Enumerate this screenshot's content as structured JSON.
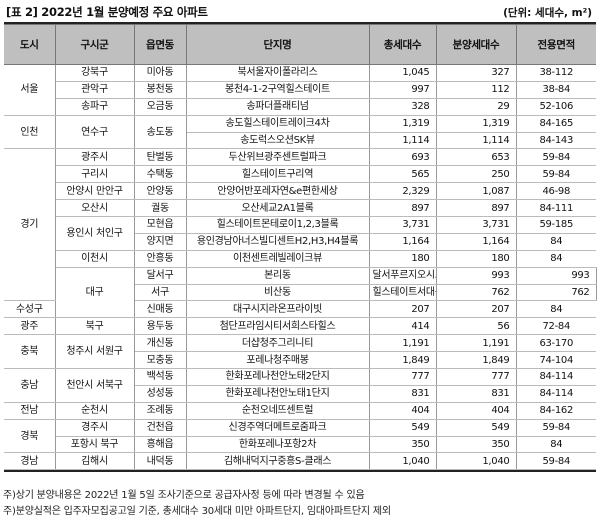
{
  "title": "[표 2] 2022년 1월 분양예정 주요 아파트",
  "unit": "(단위: 세대수, m²)",
  "headers": [
    "도시",
    "구시군",
    "읍면동",
    "단지명",
    "총세대수",
    "분양세대수",
    "전용면적"
  ],
  "rows": [
    {
      "city": "서울",
      "city_rows": 3,
      "district": "강북구",
      "town": "미아동",
      "name": "북서울자이폴라리스",
      "total": "1,045",
      "supply": "327",
      "area": "38-112"
    },
    {
      "district": "관악구",
      "town": "봉천동",
      "name": "봉천4-1-2구역힐스테이트",
      "total": "997",
      "supply": "112",
      "area": "38-84"
    },
    {
      "district": "송파구",
      "town": "오금동",
      "name": "송파더플래티넘",
      "total": "328",
      "supply": "29",
      "area": "52-106"
    },
    {
      "city": "인천",
      "city_rows": 2,
      "district": "연수구",
      "district_rows": 2,
      "town": "송도동",
      "town_rows": 2,
      "name": "송도힐스테이트레이크4차",
      "total": "1,319",
      "supply": "1,319",
      "area": "84-165"
    },
    {
      "name": "송도럭스오션SK뷰",
      "total": "1,114",
      "supply": "1,114",
      "area": "84-143"
    },
    {
      "city": "경기",
      "city_rows": 9,
      "district": "광주시",
      "town": "탄벌동",
      "name": "두산위브광주센트럴파크",
      "total": "693",
      "supply": "653",
      "area": "59-84"
    },
    {
      "district": "구리시",
      "town": "수택동",
      "name": "힐스테이트구리역",
      "total": "565",
      "supply": "250",
      "area": "59-84"
    },
    {
      "district": "안양시 만안구",
      "town": "안양동",
      "name": "안양어반포레자연&e편한세상",
      "total": "2,329",
      "supply": "1,087",
      "area": "46-98"
    },
    {
      "district": "오산시",
      "town": "궐동",
      "name": "오산세교2A1블록",
      "total": "897",
      "supply": "897",
      "area": "84-111"
    },
    {
      "district": "용인시 처인구",
      "district_rows": 2,
      "town": "모현읍",
      "name": "힐스테이트몬테로이1,2,3블록",
      "total": "3,731",
      "supply": "3,731",
      "area": "59-185"
    },
    {
      "town": "양지면",
      "name": "용인경남아너스빌디센트H2,H3,H4블록",
      "total": "1,164",
      "supply": "1,164",
      "area": "84"
    },
    {
      "district": "이천시",
      "town": "안흥동",
      "name": "이천센트레빌레이크뷰",
      "total": "180",
      "supply": "180",
      "area": "84"
    },
    {
      "city": "대구",
      "city_rows": 3,
      "district": "달서구",
      "town": "본리동",
      "name": "달서푸르지오시그니처",
      "total": "993",
      "supply": "993",
      "area": "84"
    },
    {
      "district": "서구",
      "town": "비산동",
      "name": "힐스테이트서대구역센트럴",
      "total": "762",
      "supply": "762",
      "area": "84-102"
    },
    {
      "district": "수성구",
      "town": "신매동",
      "name": "대구시지라온프라이빗",
      "total": "207",
      "supply": "207",
      "area": "84"
    },
    {
      "city": "광주",
      "city_rows": 1,
      "district": "북구",
      "town": "용두동",
      "name": "첨단프라임시티서희스타힐스",
      "total": "414",
      "supply": "56",
      "area": "72-84"
    },
    {
      "city": "충북",
      "city_rows": 2,
      "district": "청주시 서원구",
      "district_rows": 2,
      "town": "개신동",
      "name": "더샵청주그리니티",
      "total": "1,191",
      "supply": "1,191",
      "area": "63-170"
    },
    {
      "town": "모충동",
      "name": "포레나청주매봉",
      "total": "1,849",
      "supply": "1,849",
      "area": "74-104"
    },
    {
      "city": "충남",
      "city_rows": 2,
      "district": "천안시 서북구",
      "district_rows": 2,
      "town": "백석동",
      "name": "한화포레나천안노태2단지",
      "total": "777",
      "supply": "777",
      "area": "84-114"
    },
    {
      "town": "성성동",
      "name": "한화포레나천안노태1단지",
      "total": "831",
      "supply": "831",
      "area": "84-114"
    },
    {
      "city": "전남",
      "city_rows": 1,
      "district": "순천시",
      "town": "조례동",
      "name": "순천오네뜨센트럴",
      "total": "404",
      "supply": "404",
      "area": "84-162"
    },
    {
      "city": "경북",
      "city_rows": 2,
      "district": "경주시",
      "town": "건천읍",
      "name": "신경주역더메트로줌파크",
      "total": "549",
      "supply": "549",
      "area": "59-84"
    },
    {
      "district": "포항시 북구",
      "town": "흥해읍",
      "name": "한화포레나포항2차",
      "total": "350",
      "supply": "350",
      "area": "84"
    },
    {
      "city": "경남",
      "city_rows": 1,
      "district": "김해시",
      "town": "내덕동",
      "name": "김해내덕지구중흥S-클래스",
      "total": "1,040",
      "supply": "1,040",
      "area": "59-84"
    }
  ],
  "notes": [
    "주)상기 분양내용은 2022년 1월 5일 조사기준으로 공급자사정 등에 따라 변경될 수 있음",
    "주)분양실적은 입주자모집공고일 기준, 총세대수 30세대 미만 아파트단지, 임대아파트단지 제외"
  ]
}
